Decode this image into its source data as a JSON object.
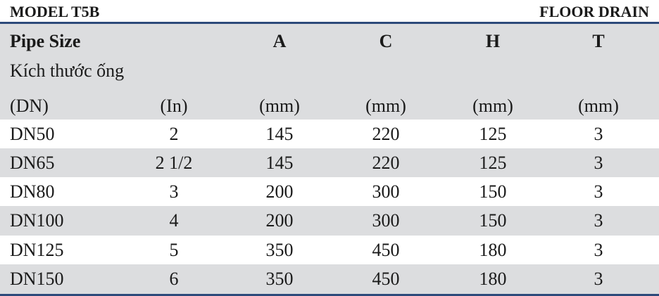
{
  "header": {
    "model": "MODEL  T5B",
    "product": "FLOOR DRAIN"
  },
  "table": {
    "heading": {
      "pipe_size": "Pipe Size",
      "subtitle": "Kích thước ống",
      "letters": [
        "A",
        "C",
        "H",
        "T"
      ]
    },
    "units": [
      "(DN)",
      "(In)",
      "(mm)",
      "(mm)",
      "(mm)",
      "(mm)"
    ],
    "rows": [
      [
        "DN50",
        "2",
        "145",
        "220",
        "125",
        "3"
      ],
      [
        "DN65",
        "2 1/2",
        "145",
        "220",
        "125",
        "3"
      ],
      [
        "DN80",
        "3",
        "200",
        "300",
        "150",
        "3"
      ],
      [
        "DN100",
        "4",
        "200",
        "300",
        "150",
        "3"
      ],
      [
        "DN125",
        "5",
        "350",
        "450",
        "180",
        "3"
      ],
      [
        "DN150",
        "6",
        "350",
        "450",
        "180",
        "3"
      ]
    ]
  }
}
